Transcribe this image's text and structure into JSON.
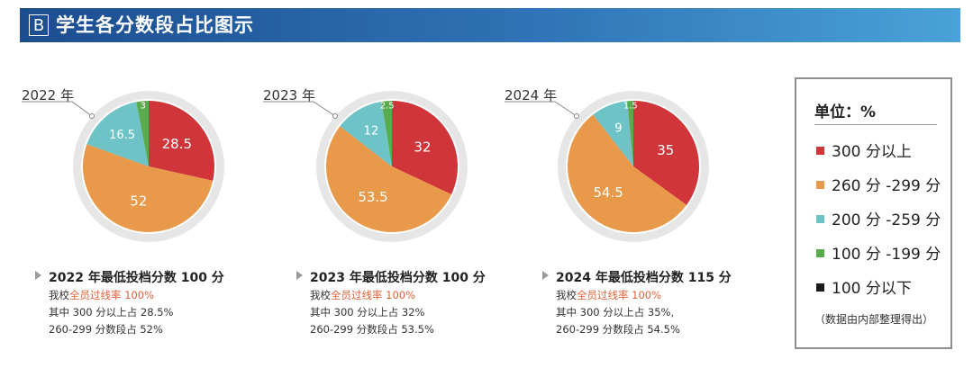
{
  "header": {
    "badge": "B",
    "title": "学生各分数段占比图示"
  },
  "chart_data": [
    {
      "type": "pie",
      "title": "2022 年",
      "categories": [
        "300 分以上",
        "260 分 -299 分",
        "200 分 -259 分",
        "100 分 -199 分",
        "100 分以下"
      ],
      "values": [
        28.5,
        52,
        16.5,
        3,
        0
      ],
      "labels": [
        "28.5",
        "52",
        "16.5",
        "3",
        ""
      ]
    },
    {
      "type": "pie",
      "title": "2023 年",
      "categories": [
        "300 分以上",
        "260 分 -299 分",
        "200 分 -259 分",
        "100 分 -199 分",
        "100 分以下"
      ],
      "values": [
        32,
        53.5,
        12,
        2.5,
        0
      ],
      "labels": [
        "32",
        "53.5",
        "12",
        "2.5",
        ""
      ]
    },
    {
      "type": "pie",
      "title": "2024 年",
      "categories": [
        "300 分以上",
        "260 分 -299 分",
        "200 分 -259 分",
        "100 分 -199 分",
        "100 分以下"
      ],
      "values": [
        35,
        54.5,
        9,
        1.5,
        0
      ],
      "labels": [
        "35",
        "54.5",
        "9",
        "1.5",
        ""
      ]
    }
  ],
  "colors": [
    "#d0353a",
    "#e8994a",
    "#6ec3c6",
    "#5aaa4e",
    "#1a1a1a"
  ],
  "info": [
    {
      "title": "2022 年最低投档分数 100 分",
      "line1_prefix": "我校",
      "line1_red": "全员过线率 100%",
      "line2": "其中 300 分以上占 28.5%",
      "line3": "260-299 分数段占 52%"
    },
    {
      "title": "2023 年最低投档分数 100 分",
      "line1_prefix": "我校",
      "line1_red": "全员过线率 100%",
      "line2": "其中 300 分以上占 32%",
      "line3": "260-299 分数段占 53.5%"
    },
    {
      "title": "2024 年最低投档分数 115 分",
      "line1_prefix": "我校",
      "line1_red": "全员过线率 100%",
      "line2": "其中 300 分以上占 35%,",
      "line3": "260-299 分数段占 54.5%"
    }
  ],
  "legend": {
    "unit": "单位：%",
    "items": [
      "300 分以上",
      "260 分 -299 分",
      "200 分 -259 分",
      "100 分 -199 分",
      "100 分以下"
    ],
    "note": "（数据由内部整理得出）"
  }
}
